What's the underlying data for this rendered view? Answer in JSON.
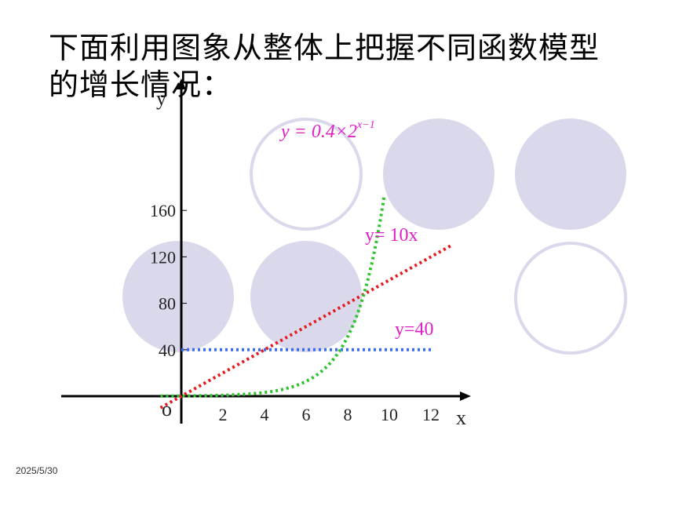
{
  "slide": {
    "title": "下面利用图象从整体上把握不同函数模型的增长情况：",
    "date": "2025/5/30"
  },
  "decor": {
    "circle_fill": "#d9d9eb",
    "circle_stroke": "#d9d9eb"
  },
  "chart_data": {
    "type": "line",
    "xlabel": "x",
    "ylabel": "y",
    "origin_label": "o",
    "xticks": [
      2,
      4,
      6,
      8,
      10,
      12
    ],
    "yticks": [
      40,
      80,
      120,
      160
    ],
    "xlim": [
      -1,
      14
    ],
    "ylim": [
      -10,
      230
    ],
    "grid": false,
    "series": [
      {
        "name": "y=40",
        "label_text": "y=40",
        "color": "#3a6bf2",
        "style": "dotted",
        "points": [
          [
            0,
            40
          ],
          [
            12,
            40
          ]
        ]
      },
      {
        "name": "y= 10x",
        "label_text": "y= 10x",
        "color": "#e8191e",
        "style": "dotted",
        "points": [
          [
            -1,
            -10
          ],
          [
            13,
            130
          ]
        ]
      },
      {
        "name": "y = 0.4×2^(x−1)",
        "label_main": "y = 0.4×2",
        "label_sup": "x−1",
        "color": "#2ec22e",
        "style": "dotted",
        "function": "0.4*2^(x-1)",
        "x_domain": [
          -1,
          9.75
        ]
      }
    ]
  }
}
